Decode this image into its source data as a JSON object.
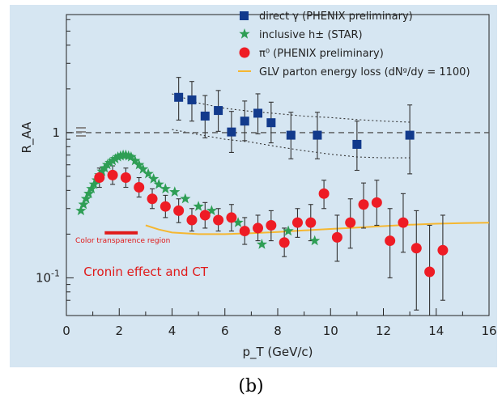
{
  "caption": "(b)",
  "colors": {
    "panel_bg": "#d6e6f2",
    "direct_gamma": "#123a8c",
    "inclusive_h": "#2e9e55",
    "pi0": "#ee1c25",
    "glv": "#f5b731",
    "annotation": "#e01a1a"
  },
  "chart_data": {
    "type": "scatter",
    "xlabel": "p_T (GeV/c)",
    "ylabel": "R_AA",
    "xlim": [
      0,
      16
    ],
    "ylim": [
      0.055,
      6.5
    ],
    "yscale": "log",
    "xticks": [
      0,
      2,
      4,
      6,
      8,
      10,
      12,
      14,
      16
    ],
    "yticks": [
      {
        "value": 1,
        "label": "1"
      },
      {
        "value": 0.1,
        "label": "10^-1"
      }
    ],
    "grid": false,
    "legend_position": "top-right",
    "reference_line": {
      "y": 1,
      "style": "dashed"
    },
    "series": [
      {
        "name": "direct γ (PHENIX preliminary)",
        "marker": "square",
        "points": [
          {
            "x": 4.25,
            "y": 1.75,
            "lo": 1.22,
            "hi": 2.4
          },
          {
            "x": 4.75,
            "y": 1.68,
            "lo": 1.2,
            "hi": 2.25
          },
          {
            "x": 5.25,
            "y": 1.3,
            "lo": 0.92,
            "hi": 1.8
          },
          {
            "x": 5.75,
            "y": 1.42,
            "lo": 1.02,
            "hi": 1.95
          },
          {
            "x": 6.25,
            "y": 1.01,
            "lo": 0.73,
            "hi": 1.4
          },
          {
            "x": 6.75,
            "y": 1.2,
            "lo": 0.88,
            "hi": 1.65
          },
          {
            "x": 7.25,
            "y": 1.36,
            "lo": 0.98,
            "hi": 1.85
          },
          {
            "x": 7.75,
            "y": 1.17,
            "lo": 0.85,
            "hi": 1.62
          },
          {
            "x": 8.5,
            "y": 0.96,
            "lo": 0.66,
            "hi": 1.38
          },
          {
            "x": 9.5,
            "y": 0.96,
            "lo": 0.66,
            "hi": 1.38
          },
          {
            "x": 11.0,
            "y": 0.83,
            "lo": 0.55,
            "hi": 1.2
          },
          {
            "x": 13.0,
            "y": 0.96,
            "lo": 0.52,
            "hi": 1.55
          }
        ],
        "band": {
          "x": [
            4.0,
            5.0,
            6.0,
            7.0,
            8.0,
            9.0,
            10.0,
            11.0,
            12.0,
            13.0
          ],
          "upper": [
            1.85,
            1.6,
            1.47,
            1.4,
            1.35,
            1.3,
            1.27,
            1.23,
            1.2,
            1.18
          ],
          "lower": [
            1.05,
            0.97,
            0.9,
            0.86,
            0.8,
            0.75,
            0.71,
            0.68,
            0.67,
            0.67
          ]
        }
      },
      {
        "name": "inclusive h± (STAR)",
        "marker": "star",
        "points": [
          {
            "x": 0.55,
            "y": 0.29
          },
          {
            "x": 0.65,
            "y": 0.32
          },
          {
            "x": 0.75,
            "y": 0.35
          },
          {
            "x": 0.85,
            "y": 0.38
          },
          {
            "x": 0.95,
            "y": 0.41
          },
          {
            "x": 1.05,
            "y": 0.44
          },
          {
            "x": 1.15,
            "y": 0.47
          },
          {
            "x": 1.25,
            "y": 0.51
          },
          {
            "x": 1.35,
            "y": 0.54
          },
          {
            "x": 1.45,
            "y": 0.57
          },
          {
            "x": 1.55,
            "y": 0.6
          },
          {
            "x": 1.65,
            "y": 0.62
          },
          {
            "x": 1.75,
            "y": 0.64
          },
          {
            "x": 1.85,
            "y": 0.66
          },
          {
            "x": 1.95,
            "y": 0.68
          },
          {
            "x": 2.05,
            "y": 0.69
          },
          {
            "x": 2.15,
            "y": 0.7
          },
          {
            "x": 2.25,
            "y": 0.7
          },
          {
            "x": 2.35,
            "y": 0.69
          },
          {
            "x": 2.45,
            "y": 0.68
          },
          {
            "x": 2.6,
            "y": 0.64
          },
          {
            "x": 2.75,
            "y": 0.6
          },
          {
            "x": 2.9,
            "y": 0.56
          },
          {
            "x": 3.1,
            "y": 0.52
          },
          {
            "x": 3.3,
            "y": 0.48
          },
          {
            "x": 3.5,
            "y": 0.44
          },
          {
            "x": 3.75,
            "y": 0.41
          },
          {
            "x": 4.1,
            "y": 0.39
          },
          {
            "x": 4.5,
            "y": 0.35
          },
          {
            "x": 5.0,
            "y": 0.31
          },
          {
            "x": 5.5,
            "y": 0.29
          },
          {
            "x": 6.5,
            "y": 0.24
          },
          {
            "x": 7.4,
            "y": 0.17
          },
          {
            "x": 8.4,
            "y": 0.21
          },
          {
            "x": 9.4,
            "y": 0.18
          }
        ]
      },
      {
        "name": "π⁰ (PHENIX preliminary)",
        "marker": "circle",
        "points": [
          {
            "x": 1.25,
            "y": 0.49,
            "lo": 0.42,
            "hi": 0.57
          },
          {
            "x": 1.75,
            "y": 0.51,
            "lo": 0.44,
            "hi": 0.59
          },
          {
            "x": 2.25,
            "y": 0.49,
            "lo": 0.42,
            "hi": 0.57
          },
          {
            "x": 2.75,
            "y": 0.42,
            "lo": 0.36,
            "hi": 0.49
          },
          {
            "x": 3.25,
            "y": 0.35,
            "lo": 0.3,
            "hi": 0.41
          },
          {
            "x": 3.75,
            "y": 0.31,
            "lo": 0.26,
            "hi": 0.37
          },
          {
            "x": 4.25,
            "y": 0.29,
            "lo": 0.24,
            "hi": 0.35
          },
          {
            "x": 4.75,
            "y": 0.25,
            "lo": 0.21,
            "hi": 0.3
          },
          {
            "x": 5.25,
            "y": 0.27,
            "lo": 0.22,
            "hi": 0.33
          },
          {
            "x": 5.75,
            "y": 0.25,
            "lo": 0.21,
            "hi": 0.3
          },
          {
            "x": 6.25,
            "y": 0.26,
            "lo": 0.21,
            "hi": 0.32
          },
          {
            "x": 6.75,
            "y": 0.21,
            "lo": 0.17,
            "hi": 0.26
          },
          {
            "x": 7.25,
            "y": 0.22,
            "lo": 0.18,
            "hi": 0.27
          },
          {
            "x": 7.75,
            "y": 0.23,
            "lo": 0.18,
            "hi": 0.29
          },
          {
            "x": 8.25,
            "y": 0.175,
            "lo": 0.14,
            "hi": 0.22
          },
          {
            "x": 8.75,
            "y": 0.24,
            "lo": 0.19,
            "hi": 0.3
          },
          {
            "x": 9.25,
            "y": 0.24,
            "lo": 0.18,
            "hi": 0.32
          },
          {
            "x": 9.75,
            "y": 0.38,
            "lo": 0.3,
            "hi": 0.47
          },
          {
            "x": 10.25,
            "y": 0.19,
            "lo": 0.13,
            "hi": 0.27
          },
          {
            "x": 10.75,
            "y": 0.24,
            "lo": 0.16,
            "hi": 0.35
          },
          {
            "x": 11.25,
            "y": 0.32,
            "lo": 0.22,
            "hi": 0.45
          },
          {
            "x": 11.75,
            "y": 0.33,
            "lo": 0.23,
            "hi": 0.47
          },
          {
            "x": 12.25,
            "y": 0.18,
            "lo": 0.1,
            "hi": 0.3
          },
          {
            "x": 12.75,
            "y": 0.24,
            "lo": 0.15,
            "hi": 0.38
          },
          {
            "x": 13.25,
            "y": 0.16,
            "lo": 0.06,
            "hi": 0.29
          },
          {
            "x": 13.75,
            "y": 0.11,
            "lo": 0.055,
            "hi": 0.23
          },
          {
            "x": 14.25,
            "y": 0.155,
            "lo": 0.07,
            "hi": 0.27
          }
        ]
      },
      {
        "name": "GLV parton energy loss (dNᵍ/dy = 1100)",
        "marker": "line",
        "x": [
          3.0,
          3.5,
          4.0,
          5.0,
          6.0,
          7.0,
          8.0,
          9.0,
          10.0,
          11.0,
          12.0,
          13.0,
          14.0,
          15.0,
          16.0
        ],
        "y": [
          0.23,
          0.215,
          0.205,
          0.2,
          0.2,
          0.203,
          0.207,
          0.212,
          0.217,
          0.222,
          0.227,
          0.232,
          0.236,
          0.238,
          0.24
        ]
      }
    ],
    "annotations": [
      {
        "text": "Color transparence region",
        "x_range": [
          1.45,
          2.7
        ],
        "y": 0.175
      },
      {
        "text": "Cronin effect and CT",
        "x": 0.65,
        "y": 0.103
      }
    ]
  }
}
